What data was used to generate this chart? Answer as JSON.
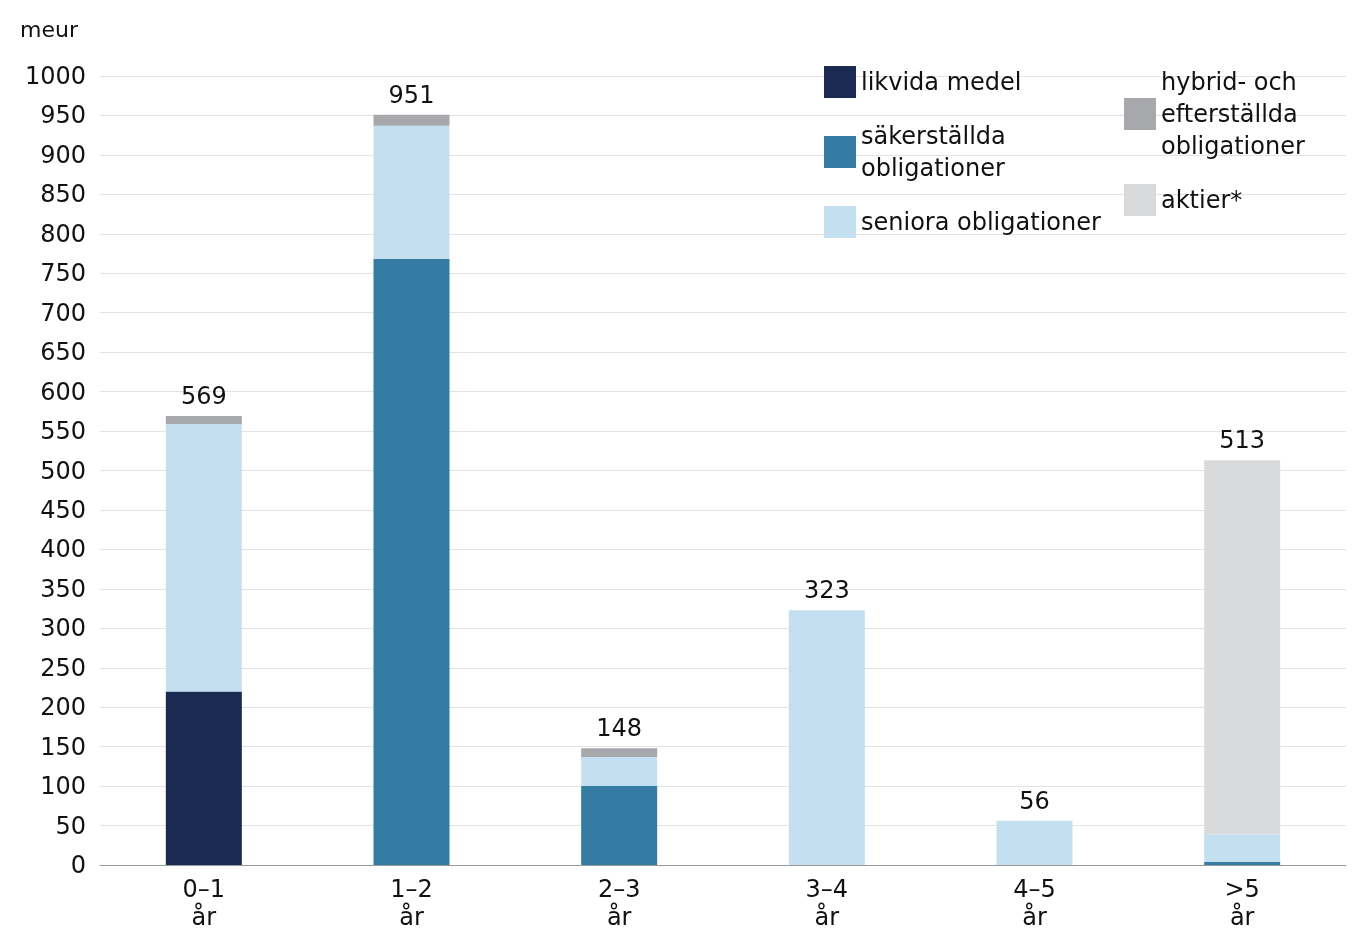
{
  "chart_data": {
    "type": "bar",
    "stacked": true,
    "ylabel": "meur",
    "categories": [
      "0–1 år",
      "1–2 år",
      "2–3 år",
      "3–4 år",
      "4–5 år",
      ">5 år"
    ],
    "series": [
      {
        "name": "likvida medel",
        "color": "#1b2a50",
        "values": [
          220,
          0,
          0,
          0,
          0,
          0
        ]
      },
      {
        "name": "säkerställda obligationer",
        "color": "#347ca3",
        "values": [
          0,
          768,
          100,
          0,
          0,
          4
        ]
      },
      {
        "name": "seniora obligationer",
        "color": "#c3dff0",
        "values": [
          339,
          169,
          37,
          323,
          56,
          35
        ]
      },
      {
        "name": "hybrid- och efterställda obligationer",
        "color": "#a7a8ab",
        "values": [
          10,
          14,
          11,
          0,
          0,
          0
        ]
      },
      {
        "name": "aktier*",
        "color": "#d9dadb",
        "values": [
          0,
          0,
          0,
          0,
          0,
          474
        ]
      }
    ],
    "totals": [
      "569",
      "951",
      "148",
      "323",
      "56",
      "513"
    ],
    "ylim": [
      0,
      1000
    ],
    "yticks": [
      0,
      50,
      100,
      150,
      200,
      250,
      300,
      350,
      400,
      450,
      500,
      550,
      600,
      650,
      700,
      750,
      800,
      850,
      900,
      950,
      1000
    ],
    "grid": "y",
    "legend": "top right"
  }
}
